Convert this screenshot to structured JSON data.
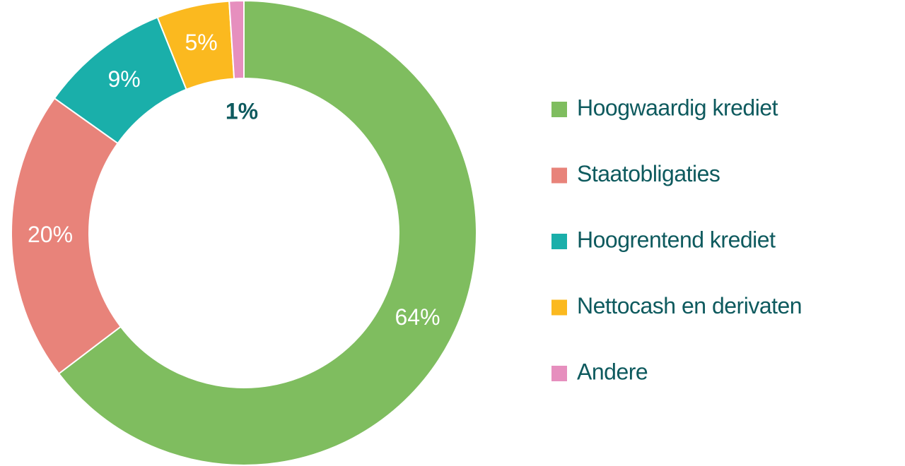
{
  "chart_data": {
    "type": "donut",
    "categories": [
      "Hoogwaardig krediet",
      "Staatobligaties",
      "Hoogrentend krediet",
      "Nettocash en derivaten",
      "Andere"
    ],
    "values": [
      64,
      20,
      9,
      5,
      1
    ],
    "value_labels": [
      "64%",
      "20%",
      "9%",
      "5%",
      "1%"
    ],
    "colors": [
      "#7fbd5f",
      "#e8837a",
      "#1aafaa",
      "#fbb91f",
      "#e68fbe"
    ],
    "legend": "right"
  }
}
